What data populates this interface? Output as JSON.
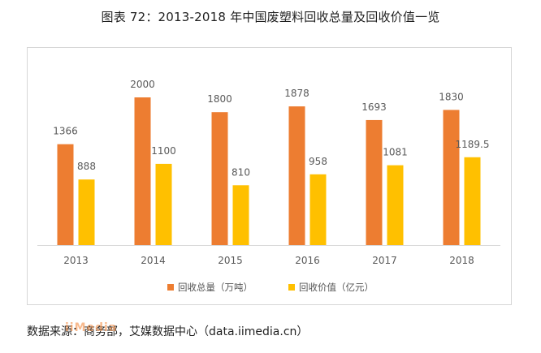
{
  "colors": {
    "series_a": "#ED7D31",
    "series_b": "#FFC000",
    "axis": "#d9d9d9",
    "label": "#595959"
  },
  "header": {
    "title": "图表 72：2013-2018 年中国废塑料回收总量及回收价值一览"
  },
  "footer": {
    "source": "数据来源：商务部，艾媒数据中心（data.iimedia.cn）",
    "watermark": "iiMedia"
  },
  "chart_data": {
    "type": "bar",
    "title": "图表 72：2013-2018 年中国废塑料回收总量及回收价值一览",
    "xlabel": "",
    "ylabel": "",
    "categories": [
      "2013",
      "2014",
      "2015",
      "2016",
      "2017",
      "2018"
    ],
    "series": [
      {
        "name": "回收总量（万吨）",
        "values": [
          1366,
          2000,
          1800,
          1878,
          1693,
          1830
        ],
        "labels": [
          "1366",
          "2000",
          "1800",
          "1878",
          "1693",
          "1830"
        ]
      },
      {
        "name": "回收价值（亿元）",
        "values": [
          888,
          1100,
          810,
          958,
          1081,
          1189.5
        ],
        "labels": [
          "888",
          "1100",
          "810",
          "958",
          "1081",
          "1189.5"
        ]
      }
    ],
    "ylim": [
      0,
      2400
    ],
    "grid": false,
    "legend_position": "bottom"
  }
}
